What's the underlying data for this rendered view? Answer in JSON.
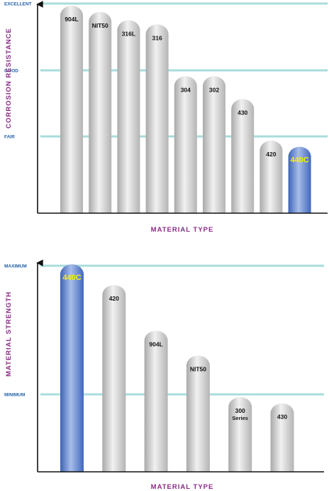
{
  "chart_data": [
    {
      "type": "bar",
      "xlabel": "MATERIAL TYPE",
      "ylabel": "CORROSION RESISTANCE",
      "levels": [
        "EXCELLENT",
        "GOOD",
        "FAIR"
      ],
      "categories": [
        "904L",
        "NIT50",
        "316L",
        "316",
        "304",
        "302",
        "430",
        "420",
        "440C"
      ],
      "values": [
        1.0,
        0.97,
        0.93,
        0.91,
        0.66,
        0.66,
        0.55,
        0.35,
        0.32
      ],
      "highlight": "440C",
      "bar_color": "#c9c9c9",
      "highlight_color": "#4a70c2",
      "level_line_color": "#a9dcdc"
    },
    {
      "type": "bar",
      "xlabel": "MATERIAL TYPE",
      "ylabel": "MATERIAL STRENGTH",
      "levels": [
        "MAXIMUM",
        "MINIMUM"
      ],
      "categories": [
        "440C",
        "420",
        "904L",
        "NIT50",
        "300",
        "430"
      ],
      "category_sublabels": [
        "",
        "",
        "",
        "",
        "Series",
        ""
      ],
      "values": [
        1.0,
        0.9,
        0.68,
        0.56,
        0.36,
        0.33
      ],
      "highlight": "440C",
      "bar_color": "#c9c9c9",
      "highlight_color": "#4a70c2",
      "level_line_color": "#a9dcdc"
    }
  ]
}
